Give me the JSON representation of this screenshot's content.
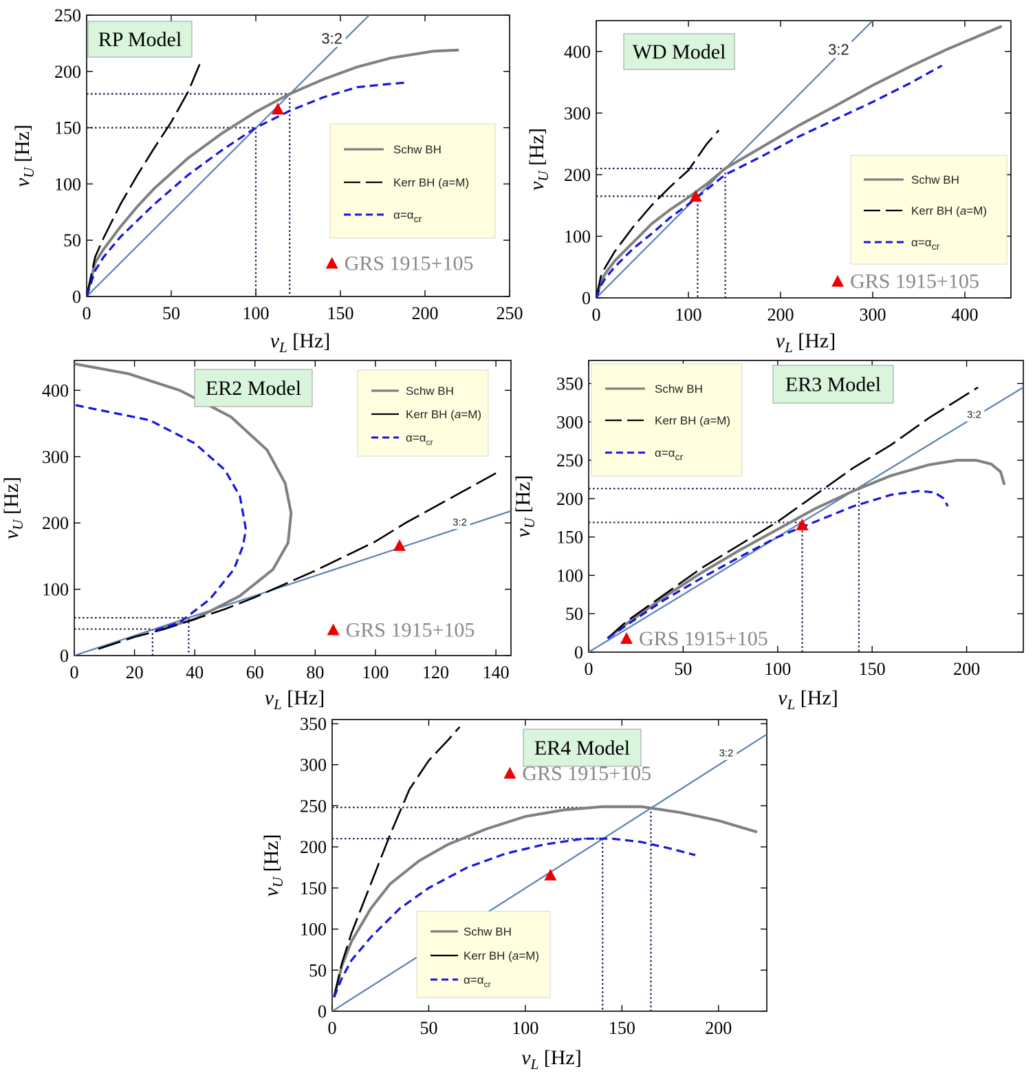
{
  "common": {
    "xlabel_sym": "ν",
    "xlabel_sub": "L",
    "ylabel_sym": "ν",
    "ylabel_sub": "U",
    "unit": "[Hz]",
    "ratio_label": "3:2",
    "source_label": "GRS 1915+105",
    "legend": {
      "schw": "Schw BH",
      "kerr_prefix": "Kerr BH (",
      "kerr_italic": "a",
      "kerr_suffix": "=M)",
      "alpha_main": "α=α",
      "alpha_sub": "cr"
    },
    "colors": {
      "schw": "#808080",
      "kerr": "#000000",
      "alpha": "#1515e0",
      "ratio_line": "#5b7fb4",
      "guide": "#1b1b4d",
      "marker": "#ee0000",
      "title_bg": "#d9f5dc",
      "legend_bg": "#ffffe0"
    }
  },
  "chart_data": [
    {
      "title": "RP Model",
      "type": "line",
      "xlim": [
        0,
        250
      ],
      "ylim": [
        0,
        250
      ],
      "xticks": [
        0,
        50,
        100,
        150,
        200,
        250
      ],
      "yticks": [
        0,
        50,
        100,
        150,
        200,
        250
      ],
      "series": [
        {
          "name": "Schw BH",
          "points": [
            [
              0,
              0
            ],
            [
              5,
              30
            ],
            [
              10,
              42
            ],
            [
              20,
              62
            ],
            [
              30,
              80
            ],
            [
              40,
              96
            ],
            [
              60,
              123
            ],
            [
              80,
              145
            ],
            [
              100,
              164
            ],
            [
              120,
              180
            ],
            [
              140,
              193
            ],
            [
              160,
              204
            ],
            [
              180,
              212
            ],
            [
              205,
              218
            ],
            [
              220,
              219
            ]
          ]
        },
        {
          "name": "Kerr BH (a=M)",
          "points": [
            [
              0,
              0
            ],
            [
              5,
              35
            ],
            [
              10,
              52
            ],
            [
              20,
              82
            ],
            [
              30,
              108
            ],
            [
              40,
              132
            ],
            [
              50,
              155
            ],
            [
              60,
              182
            ],
            [
              67,
              207
            ]
          ]
        },
        {
          "name": "α=α_cr",
          "points": [
            [
              0,
              0
            ],
            [
              5,
              23
            ],
            [
              10,
              35
            ],
            [
              20,
              53
            ],
            [
              40,
              82
            ],
            [
              60,
              108
            ],
            [
              80,
              130
            ],
            [
              100,
              150
            ],
            [
              120,
              165
            ],
            [
              140,
              177
            ],
            [
              160,
              186
            ],
            [
              180,
              189
            ],
            [
              188,
              190
            ]
          ]
        }
      ],
      "ratio_line": [
        [
          0,
          0
        ],
        [
          167,
          250
        ]
      ],
      "ratio_label_at": [
        145,
        226
      ],
      "guides": [
        {
          "x": 100,
          "y": 150
        },
        {
          "x": 120,
          "y": 180
        }
      ],
      "marker": [
        113,
        166
      ],
      "source_at": [
        145,
        29
      ]
    },
    {
      "title": "WD Model",
      "type": "line",
      "xlim": [
        0,
        450
      ],
      "ylim": [
        0,
        450
      ],
      "xticks": [
        0,
        100,
        200,
        300,
        400
      ],
      "yticks": [
        0,
        100,
        200,
        300,
        400
      ],
      "series": [
        {
          "name": "Schw BH",
          "points": [
            [
              0,
              0
            ],
            [
              5,
              25
            ],
            [
              10,
              40
            ],
            [
              20,
              60
            ],
            [
              40,
              90
            ],
            [
              60,
              120
            ],
            [
              80,
              143
            ],
            [
              100,
              163
            ],
            [
              120,
              185
            ],
            [
              140,
              210
            ],
            [
              180,
              245
            ],
            [
              220,
              280
            ],
            [
              260,
              312
            ],
            [
              300,
              345
            ],
            [
              340,
              375
            ],
            [
              380,
              403
            ],
            [
              410,
              422
            ],
            [
              440,
              441
            ]
          ]
        },
        {
          "name": "Kerr BH (a=M)",
          "points": [
            [
              0,
              0
            ],
            [
              5,
              35
            ],
            [
              10,
              50
            ],
            [
              20,
              75
            ],
            [
              40,
              115
            ],
            [
              60,
              150
            ],
            [
              80,
              180
            ],
            [
              100,
              207
            ],
            [
              120,
              250
            ],
            [
              133,
              272
            ]
          ]
        },
        {
          "name": "α=α_cr",
          "points": [
            [
              0,
              0
            ],
            [
              5,
              20
            ],
            [
              10,
              32
            ],
            [
              20,
              50
            ],
            [
              40,
              80
            ],
            [
              60,
              104
            ],
            [
              80,
              130
            ],
            [
              100,
              152
            ],
            [
              140,
              200
            ],
            [
              180,
              230
            ],
            [
              220,
              262
            ],
            [
              260,
              290
            ],
            [
              300,
              318
            ],
            [
              340,
              348
            ],
            [
              375,
              377
            ]
          ]
        }
      ],
      "ratio_line": [
        [
          0,
          0
        ],
        [
          300,
          450
        ]
      ],
      "ratio_label_at": [
        263,
        397
      ],
      "guides": [
        {
          "x": 110,
          "y": 165
        },
        {
          "x": 140,
          "y": 210
        }
      ],
      "marker": [
        108,
        164
      ],
      "source_at": [
        262,
        26
      ]
    },
    {
      "title": "ER2 Model",
      "type": "line",
      "xlim": [
        0,
        145
      ],
      "ylim": [
        0,
        445
      ],
      "xticks": [
        0,
        20,
        40,
        60,
        80,
        100,
        120,
        140
      ],
      "yticks": [
        0,
        100,
        200,
        300,
        400
      ],
      "series": [
        {
          "name": "Schw BH",
          "points": [
            [
              27,
              38
            ],
            [
              40,
              55
            ],
            [
              55,
              90
            ],
            [
              66,
              130
            ],
            [
              71,
              170
            ],
            [
              72,
              215
            ],
            [
              70,
              260
            ],
            [
              64,
              310
            ],
            [
              52,
              360
            ],
            [
              35,
              400
            ],
            [
              18,
              425
            ],
            [
              0,
              440
            ]
          ]
        },
        {
          "name": "Kerr BH (a=M)",
          "points": [
            [
              8,
              10
            ],
            [
              20,
              28
            ],
            [
              30,
              40
            ],
            [
              40,
              55
            ],
            [
              50,
              70
            ],
            [
              60,
              88
            ],
            [
              70,
              108
            ],
            [
              80,
              128
            ],
            [
              90,
              150
            ],
            [
              100,
              172
            ],
            [
              110,
              200
            ],
            [
              120,
              225
            ],
            [
              130,
              250
            ],
            [
              140,
              275
            ]
          ]
        },
        {
          "name": "α=α_cr",
          "points": [
            [
              27,
              38
            ],
            [
              35,
              50
            ],
            [
              45,
              85
            ],
            [
              53,
              130
            ],
            [
              56,
              165
            ],
            [
              57,
              190
            ],
            [
              55,
              240
            ],
            [
              50,
              280
            ],
            [
              40,
              320
            ],
            [
              25,
              355
            ],
            [
              0,
              378
            ]
          ]
        }
      ],
      "ratio_line": [
        [
          0,
          0
        ],
        [
          145,
          218
        ]
      ],
      "ratio_label_at": [
        128,
        196
      ],
      "guides": [
        {
          "x": 26,
          "y": 40
        },
        {
          "x": 38,
          "y": 57
        }
      ],
      "marker": [
        108,
        165
      ],
      "source_at": [
        86,
        38
      ]
    },
    {
      "title": "ER3 Model",
      "type": "line",
      "xlim": [
        0,
        230
      ],
      "ylim": [
        0,
        380
      ],
      "xticks": [
        0,
        50,
        100,
        150,
        200
      ],
      "yticks": [
        0,
        50,
        100,
        150,
        200,
        250,
        300,
        350
      ],
      "series": [
        {
          "name": "Schw BH",
          "points": [
            [
              10,
              18
            ],
            [
              20,
              37
            ],
            [
              40,
              72
            ],
            [
              60,
              104
            ],
            [
              80,
              133
            ],
            [
              100,
              160
            ],
            [
              120,
              187
            ],
            [
              140,
              210
            ],
            [
              160,
              230
            ],
            [
              180,
              244
            ],
            [
              195,
              250
            ],
            [
              205,
              250
            ],
            [
              213,
              245
            ],
            [
              218,
              235
            ],
            [
              220,
              218
            ]
          ]
        },
        {
          "name": "Kerr BH (a=M)",
          "points": [
            [
              10,
              18
            ],
            [
              20,
              40
            ],
            [
              40,
              75
            ],
            [
              60,
              110
            ],
            [
              80,
              140
            ],
            [
              100,
              170
            ],
            [
              120,
              205
            ],
            [
              140,
              240
            ],
            [
              160,
              270
            ],
            [
              180,
              305
            ],
            [
              206,
              345
            ]
          ]
        },
        {
          "name": "α=α_cr",
          "points": [
            [
              10,
              18
            ],
            [
              20,
              35
            ],
            [
              40,
              68
            ],
            [
              60,
              97
            ],
            [
              80,
              124
            ],
            [
              100,
              150
            ],
            [
              120,
              170
            ],
            [
              140,
              190
            ],
            [
              160,
              205
            ],
            [
              175,
              210
            ],
            [
              183,
              208
            ],
            [
              188,
              200
            ],
            [
              190,
              190
            ]
          ]
        }
      ],
      "ratio_line": [
        [
          0,
          0
        ],
        [
          230,
          345
        ]
      ],
      "ratio_label_at": [
        204,
        305
      ],
      "guides": [
        {
          "x": 113,
          "y": 169
        },
        {
          "x": 143,
          "y": 213
        }
      ],
      "marker": [
        113,
        165
      ],
      "source_at": [
        20,
        17
      ]
    },
    {
      "title": "ER4 Model",
      "type": "line",
      "xlim": [
        0,
        225
      ],
      "ylim": [
        0,
        355
      ],
      "xticks": [
        0,
        50,
        100,
        150,
        200
      ],
      "yticks": [
        0,
        50,
        100,
        150,
        200,
        250,
        300,
        350
      ],
      "series": [
        {
          "name": "Schw BH",
          "points": [
            [
              1,
              17
            ],
            [
              5,
              55
            ],
            [
              10,
              85
            ],
            [
              20,
              125
            ],
            [
              30,
              155
            ],
            [
              45,
              183
            ],
            [
              60,
              203
            ],
            [
              80,
              222
            ],
            [
              100,
              237
            ],
            [
              120,
              245
            ],
            [
              140,
              249
            ],
            [
              160,
              249
            ],
            [
              180,
              242
            ],
            [
              200,
              232
            ],
            [
              220,
              218
            ]
          ]
        },
        {
          "name": "Kerr BH (a=M)",
          "points": [
            [
              1,
              17
            ],
            [
              5,
              58
            ],
            [
              10,
              95
            ],
            [
              20,
              155
            ],
            [
              30,
              215
            ],
            [
              40,
              270
            ],
            [
              50,
              305
            ],
            [
              60,
              330
            ],
            [
              66,
              346
            ]
          ]
        },
        {
          "name": "α=α_cr",
          "points": [
            [
              1,
              17
            ],
            [
              5,
              40
            ],
            [
              10,
              62
            ],
            [
              20,
              90
            ],
            [
              35,
              125
            ],
            [
              50,
              150
            ],
            [
              70,
              175
            ],
            [
              90,
              192
            ],
            [
              110,
              203
            ],
            [
              130,
              210
            ],
            [
              145,
              210
            ],
            [
              160,
              206
            ],
            [
              175,
              198
            ],
            [
              188,
              190
            ]
          ]
        }
      ],
      "ratio_line": [
        [
          0,
          0
        ],
        [
          225,
          337
        ]
      ],
      "ratio_label_at": [
        204,
        310
      ],
      "guides": [
        {
          "x": 140,
          "y": 210
        },
        {
          "x": 165,
          "y": 248
        }
      ],
      "marker": [
        113,
        165
      ],
      "source_at": [
        92,
        289
      ]
    }
  ]
}
